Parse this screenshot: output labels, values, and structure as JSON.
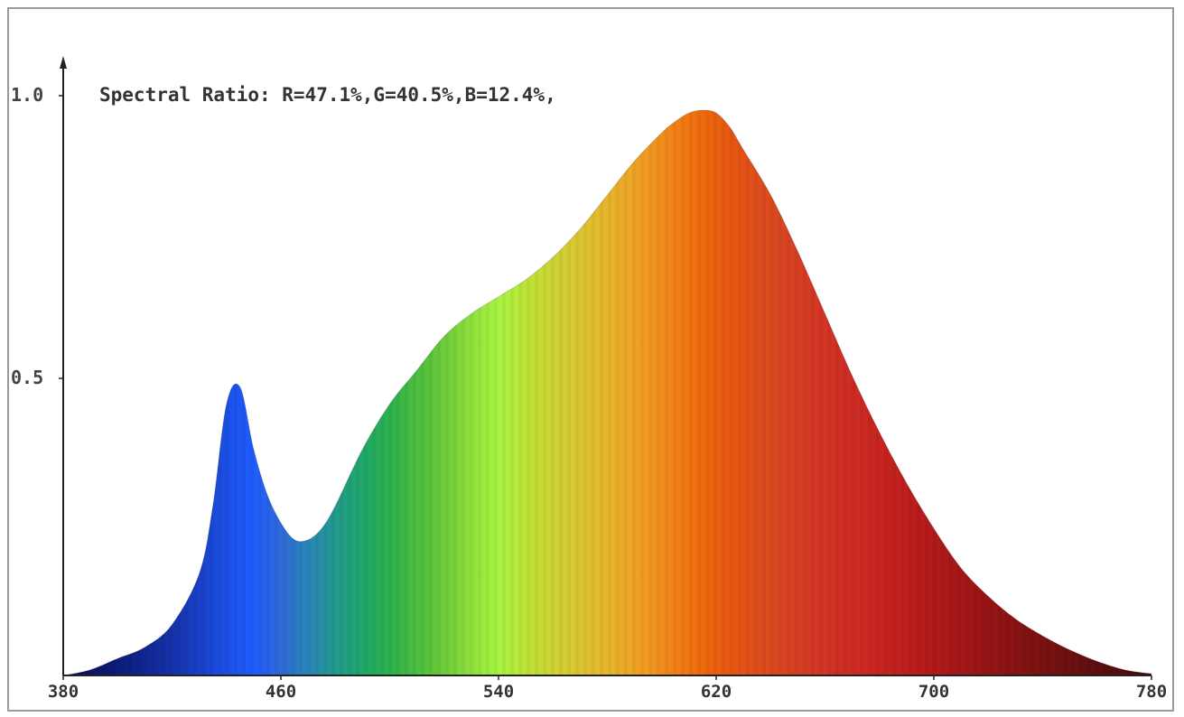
{
  "chart_data": {
    "type": "area",
    "annotation": "Spectral Ratio:  R=47.1%,G=40.5%,B=12.4%,",
    "xlabel": "",
    "ylabel": "",
    "xlim": [
      380,
      780
    ],
    "ylim": [
      0,
      1.0
    ],
    "x_ticks": [
      "380",
      "460",
      "540",
      "620",
      "700",
      "780"
    ],
    "x_tick_values": [
      380,
      460,
      540,
      620,
      700,
      780
    ],
    "y_ticks": [
      "0.5",
      "1.0"
    ],
    "y_tick_values": [
      0.5,
      1.0
    ],
    "grid": false,
    "legend": "none",
    "fill": "wavelength-colored spectrum",
    "series": [
      {
        "x": [
          380,
          390,
          400,
          410,
          420,
          430,
          435,
          440,
          445,
          450,
          455,
          460,
          465,
          470,
          475,
          480,
          490,
          500,
          510,
          520,
          530,
          540,
          550,
          560,
          570,
          580,
          590,
          600,
          605,
          610,
          615,
          620,
          625,
          630,
          640,
          650,
          660,
          670,
          680,
          690,
          700,
          710,
          720,
          730,
          740,
          750,
          760,
          770,
          780
        ],
        "y": [
          0.0,
          0.01,
          0.03,
          0.05,
          0.09,
          0.18,
          0.3,
          0.48,
          0.51,
          0.4,
          0.32,
          0.27,
          0.24,
          0.24,
          0.26,
          0.3,
          0.4,
          0.48,
          0.54,
          0.6,
          0.64,
          0.67,
          0.7,
          0.74,
          0.79,
          0.85,
          0.91,
          0.96,
          0.98,
          0.995,
          1.0,
          0.995,
          0.97,
          0.93,
          0.85,
          0.75,
          0.64,
          0.53,
          0.43,
          0.34,
          0.26,
          0.19,
          0.14,
          0.1,
          0.07,
          0.045,
          0.025,
          0.01,
          0.003
        ]
      }
    ]
  }
}
